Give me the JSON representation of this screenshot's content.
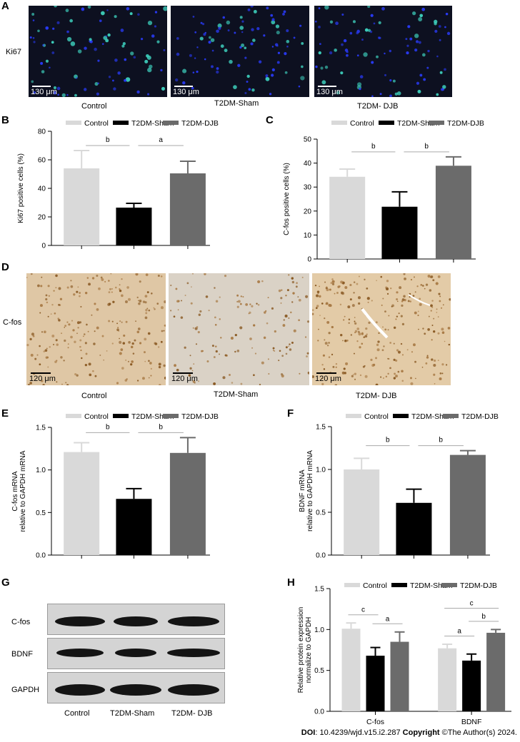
{
  "panel_labels": {
    "a": "A",
    "b": "B",
    "c": "C",
    "d": "D",
    "e": "E",
    "f": "F",
    "g": "G",
    "h": "H"
  },
  "panel_a": {
    "row_label": "Ki67",
    "scale_text": "130 μm",
    "captions": [
      "Control",
      "T2DM-Sham",
      "T2DM- DJB"
    ]
  },
  "panel_d": {
    "row_label": "C-fos",
    "scale_text": "120 μm",
    "captions": [
      "Control",
      "T2DM-Sham",
      "T2DM- DJB"
    ]
  },
  "panel_g": {
    "row_labels": [
      "C-fos",
      "BDNF",
      "GAPDH"
    ],
    "captions": [
      "Control",
      "T2DM-Sham",
      "T2DM- DJB"
    ]
  },
  "legend_labels": [
    "Control",
    "T2DM-Sham",
    "T2DM-DJB"
  ],
  "colors": {
    "control": "#d9d9d9",
    "sham": "#000000",
    "djb": "#6b6b6b"
  },
  "footer": {
    "doi_label": "DOI",
    "doi_text": ": 10.4239/wjd.v15.i2.287 ",
    "copyright_label": "Copyright",
    "copyright_text": " ©The Author(s) 2024."
  },
  "chart_data": [
    {
      "id": "B",
      "type": "bar",
      "ylabel": "Ki67 positive cells (%)",
      "ylim": [
        0,
        80
      ],
      "yticks": [
        0,
        20,
        40,
        60,
        80
      ],
      "categories": [
        "Control",
        "T2DM-Sham",
        "T2DM-DJB"
      ],
      "values": [
        54,
        26.5,
        50.5
      ],
      "errors": [
        12.5,
        3,
        8.5
      ],
      "sig": [
        {
          "from": 0,
          "to": 1,
          "label": "b"
        },
        {
          "from": 1,
          "to": 2,
          "label": "a"
        }
      ]
    },
    {
      "id": "C",
      "type": "bar",
      "ylabel": "C-fos positive cells (%)",
      "ylim": [
        0,
        50
      ],
      "yticks": [
        0,
        10,
        20,
        30,
        40,
        50
      ],
      "categories": [
        "Control",
        "T2DM-Sham",
        "T2DM-DJB"
      ],
      "values": [
        34.3,
        21.8,
        38.9
      ],
      "errors": [
        3.2,
        6.2,
        3.7
      ],
      "sig": [
        {
          "from": 0,
          "to": 1,
          "label": "b"
        },
        {
          "from": 1,
          "to": 2,
          "label": "b"
        }
      ]
    },
    {
      "id": "E",
      "type": "bar",
      "ylabel": "C-fos mRNA|relative to GAPDH mRNA",
      "ylim": [
        0,
        1.5
      ],
      "yticks": [
        "0.0",
        "0.5",
        "1.0",
        "1.5"
      ],
      "categories": [
        "Control",
        "T2DM-Sham",
        "T2DM-DJB"
      ],
      "values": [
        1.21,
        0.66,
        1.2
      ],
      "errors": [
        0.11,
        0.12,
        0.18
      ],
      "sig": [
        {
          "from": 0,
          "to": 1,
          "label": "b"
        },
        {
          "from": 1,
          "to": 2,
          "label": "b"
        }
      ]
    },
    {
      "id": "F",
      "type": "bar",
      "ylabel": "BDNF mRNA|relative to GAPDH mRNA",
      "ylim": [
        0,
        1.5
      ],
      "yticks": [
        "0.0",
        "0.5",
        "1.0",
        "1.5"
      ],
      "categories": [
        "Control",
        "T2DM-Sham",
        "T2DM-DJB"
      ],
      "values": [
        1.0,
        0.61,
        1.17
      ],
      "errors": [
        0.13,
        0.16,
        0.05
      ],
      "sig": [
        {
          "from": 0,
          "to": 1,
          "label": "b"
        },
        {
          "from": 1,
          "to": 2,
          "label": "b"
        }
      ]
    },
    {
      "id": "H",
      "type": "bar",
      "ylabel": "Relative protein expression|normalize to GAPDH",
      "ylim": [
        0,
        1.5
      ],
      "yticks": [
        "0.0",
        "0.5",
        "1.0",
        "1.5"
      ],
      "groups": [
        "C-fos",
        "BDNF"
      ],
      "series": [
        {
          "name": "Control",
          "values": [
            1.01,
            0.77
          ],
          "errors": [
            0.07,
            0.05
          ]
        },
        {
          "name": "T2DM-Sham",
          "values": [
            0.68,
            0.62
          ],
          "errors": [
            0.1,
            0.08
          ]
        },
        {
          "name": "T2DM-DJB",
          "values": [
            0.85,
            0.96
          ],
          "errors": [
            0.12,
            0.04
          ]
        }
      ],
      "sig": [
        {
          "group": 0,
          "from": 0,
          "to": 1,
          "label": "c"
        },
        {
          "group": 0,
          "from": 1,
          "to": 2,
          "label": "a"
        },
        {
          "group": 1,
          "from": 0,
          "to": 1,
          "label": "a"
        },
        {
          "group": 1,
          "from": 1,
          "to": 2,
          "label": "b"
        },
        {
          "group": 1,
          "from": 0,
          "to": 2,
          "label": "c"
        }
      ]
    }
  ]
}
